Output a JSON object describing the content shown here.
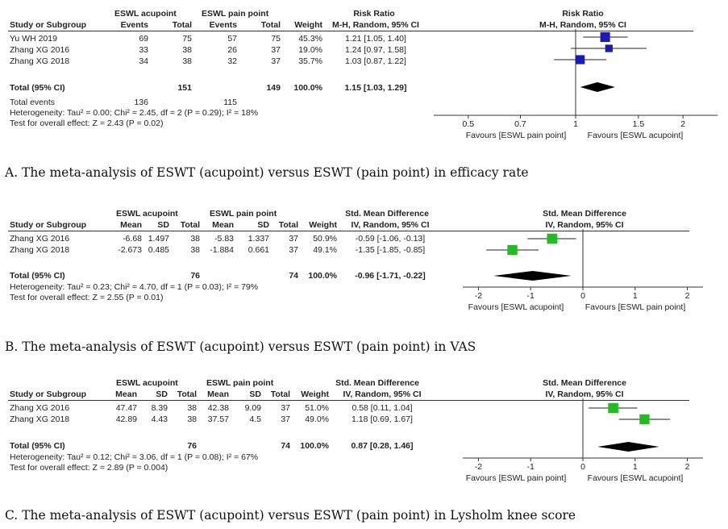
{
  "chart_data": [
    {
      "type": "forest",
      "measure_label": "Risk Ratio",
      "method_label": "M-H, Random, 95% CI",
      "group1": "ESWL acupoint",
      "group2": "ESWL pain point",
      "col_study": "Study or Subgroup",
      "col_events": "Events",
      "col_total": "Total",
      "col_weight": "Weight",
      "studies": [
        {
          "name": "Yu WH 2019",
          "e1": "69",
          "n1": "75",
          "e2": "57",
          "n2": "75",
          "weight": "45.3%",
          "ci_text": "1.21 [1.05, 1.40]",
          "est": 1.21,
          "lo": 1.05,
          "hi": 1.4,
          "w": 45.3
        },
        {
          "name": "Zhang XG 2016",
          "e1": "33",
          "n1": "38",
          "e2": "26",
          "n2": "37",
          "weight": "19.0%",
          "ci_text": "1.24 [0.97, 1.58]",
          "est": 1.24,
          "lo": 0.97,
          "hi": 1.58,
          "w": 19.0
        },
        {
          "name": "Zhang XG 2018",
          "e1": "34",
          "n1": "38",
          "e2": "32",
          "n2": "37",
          "weight": "35.7%",
          "ci_text": "1.03 [0.87, 1.22]",
          "est": 1.03,
          "lo": 0.87,
          "hi": 1.22,
          "w": 35.7
        }
      ],
      "total": {
        "label": "Total (95% CI)",
        "n1": "151",
        "n2": "149",
        "weight": "100.0%",
        "ci_text": "1.15 [1.03, 1.29]",
        "est": 1.15,
        "lo": 1.03,
        "hi": 1.29
      },
      "total_events": {
        "label": "Total events",
        "e1": "136",
        "e2": "115"
      },
      "heterogeneity": "Heterogeneity: Tau² = 0.00; Chi² = 2.45, df = 2 (P = 0.29); I² = 18%",
      "overall_effect": "Test for overall effect: Z = 2.43 (P = 0.02)",
      "x_scale": "log",
      "null_value": 1,
      "xlim": [
        0.4,
        2.5
      ],
      "ticks": [
        0.5,
        0.7,
        1,
        1.5,
        2
      ],
      "tick_labels": [
        "0.5",
        "0.7",
        "1",
        "1.5",
        "2"
      ],
      "favours_left": "Favours [ESWL pain point]",
      "favours_right": "Favours [ESWL acupoint]",
      "marker_color": "#1a1ab4"
    },
    {
      "type": "forest",
      "measure_label": "Std. Mean Difference",
      "method_label": "IV, Random, 95% CI",
      "group1": "ESWL acupoint",
      "group2": "ESWL pain point",
      "col_study": "Study or Subgroup",
      "col_mean": "Mean",
      "col_sd": "SD",
      "col_total": "Total",
      "col_weight": "Weight",
      "studies": [
        {
          "name": "Zhang XG 2016",
          "m1": "-6.68",
          "sd1": "1.497",
          "n1": "38",
          "m2": "-5.83",
          "sd2": "1.337",
          "n2": "37",
          "weight": "50.9%",
          "ci_text": "-0.59 [-1.06, -0.13]",
          "est": -0.59,
          "lo": -1.06,
          "hi": -0.13,
          "w": 50.9
        },
        {
          "name": "Zhang XG 2018",
          "m1": "-2.673",
          "sd1": "0.485",
          "n1": "38",
          "m2": "-1.884",
          "sd2": "0.661",
          "n2": "37",
          "weight": "49.1%",
          "ci_text": "-1.35 [-1.85, -0.85]",
          "est": -1.35,
          "lo": -1.85,
          "hi": -0.85,
          "w": 49.1
        }
      ],
      "total": {
        "label": "Total (95% CI)",
        "n1": "76",
        "n2": "74",
        "weight": "100.0%",
        "ci_text": "-0.96 [-1.71, -0.22]",
        "est": -0.96,
        "lo": -1.71,
        "hi": -0.22
      },
      "heterogeneity": "Heterogeneity: Tau² = 0.23; Chi² = 4.70, df = 1 (P = 0.03); I² = 79%",
      "overall_effect": "Test for overall effect: Z = 2.55 (P = 0.01)",
      "x_scale": "linear",
      "null_value": 0,
      "xlim": [
        -2.3,
        2.3
      ],
      "ticks": [
        -2,
        -1,
        0,
        1,
        2
      ],
      "tick_labels": [
        "-2",
        "-1",
        "0",
        "1",
        "2"
      ],
      "favours_left": "Favours [ESWL acupoint]",
      "favours_right": "Favours [ESWL pain point]",
      "marker_color": "#22bb22"
    },
    {
      "type": "forest",
      "measure_label": "Std. Mean Difference",
      "method_label": "IV, Random, 95% CI",
      "group1": "ESWL acupoint",
      "group2": "ESWL pain point",
      "col_study": "Study or Subgroup",
      "col_mean": "Mean",
      "col_sd": "SD",
      "col_total": "Total",
      "col_weight": "Weight",
      "studies": [
        {
          "name": "Zhang XG 2016",
          "m1": "47.47",
          "sd1": "8.39",
          "n1": "38",
          "m2": "42.38",
          "sd2": "9.09",
          "n2": "37",
          "weight": "51.0%",
          "ci_text": "0.58 [0.11, 1.04]",
          "est": 0.58,
          "lo": 0.11,
          "hi": 1.04,
          "w": 51.0
        },
        {
          "name": "Zhang XG 2018",
          "m1": "42.89",
          "sd1": "4.43",
          "n1": "38",
          "m2": "37.57",
          "sd2": "4.5",
          "n2": "37",
          "weight": "49.0%",
          "ci_text": "1.18 [0.69, 1.67]",
          "est": 1.18,
          "lo": 0.69,
          "hi": 1.67,
          "w": 49.0
        }
      ],
      "total": {
        "label": "Total (95% CI)",
        "n1": "76",
        "n2": "74",
        "weight": "100.0%",
        "ci_text": "0.87 [0.28, 1.46]",
        "est": 0.87,
        "lo": 0.28,
        "hi": 1.46
      },
      "heterogeneity": "Heterogeneity: Tau² = 0.12; Chi² = 3.06, df = 1 (P = 0.08); I² = 67%",
      "overall_effect": "Test for overall effect: Z = 2.89 (P = 0.004)",
      "x_scale": "linear",
      "null_value": 0,
      "xlim": [
        -2.3,
        2.3
      ],
      "ticks": [
        -2,
        -1,
        0,
        1,
        2
      ],
      "tick_labels": [
        "-2",
        "-1",
        "0",
        "1",
        "2"
      ],
      "favours_left": "Favours [ESWL pain point]",
      "favours_right": "Favours [ESWL acupoint]",
      "marker_color": "#22bb22"
    }
  ],
  "captions": [
    "A. The meta-analysis of ESWT (acupoint) versus ESWT (pain point) in efficacy rate",
    "B. The meta-analysis of ESWT (acupoint) versus ESWT (pain point) in VAS",
    "C. The meta-analysis of ESWT (acupoint) versus ESWT (pain point) in Lysholm knee score"
  ]
}
